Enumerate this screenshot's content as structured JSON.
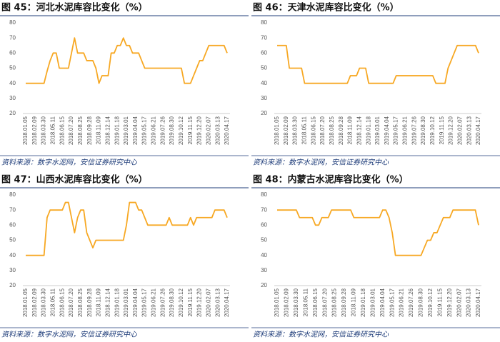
{
  "chart_data": [
    {
      "type": "line",
      "title": "图 45：河北水泥库容比变化（%）",
      "source": "资料来源：数字水泥网，安信证券研究中心",
      "color": "#f7a823",
      "categories": [
        "2018.01.05",
        null,
        null,
        "2018.02.09",
        null,
        null,
        "2018.03.30",
        null,
        null,
        "2018.05.11",
        null,
        null,
        "2018.06.15",
        null,
        null,
        "2018.07.20",
        null,
        null,
        "2018.08.25",
        null,
        null,
        "2018.09.28",
        null,
        null,
        "2018.11.09",
        null,
        null,
        "2018.12.14",
        null,
        null,
        "2019.01.18",
        null,
        null,
        "2019.03.01",
        null,
        null,
        "2019.04.04",
        null,
        null,
        "2019.05.17",
        null,
        null,
        "2019.06.21",
        null,
        null,
        "2019.07.26",
        null,
        null,
        "2019.08.30",
        null,
        null,
        "2019.10.12",
        null,
        null,
        "2019.11.15",
        null,
        null,
        "2019.12.20",
        null,
        null,
        "2020.02.07",
        null,
        null,
        "2020.03.13",
        null,
        null,
        "2020.04.17"
      ],
      "values": [
        40,
        40,
        40,
        40,
        40,
        40,
        40,
        48,
        55,
        60,
        60,
        50,
        50,
        50,
        50,
        60,
        70,
        60,
        60,
        60,
        55,
        55,
        55,
        50,
        40,
        45,
        45,
        45,
        60,
        60,
        65,
        65,
        70,
        65,
        65,
        60,
        60,
        60,
        55,
        50,
        50,
        50,
        50,
        50,
        50,
        50,
        50,
        50,
        50,
        50,
        50,
        50,
        40,
        40,
        40,
        45,
        50,
        55,
        55,
        60,
        65,
        65,
        65,
        65,
        65,
        65,
        60
      ],
      "ylim": [
        20,
        80
      ],
      "yticks": [
        20,
        30,
        40,
        50,
        60,
        70,
        80
      ]
    },
    {
      "type": "line",
      "title": "图 46：天津水泥库容比变化（%）",
      "source": "资料来源：数字水泥网，安信证券研究中心",
      "color": "#f7a823",
      "categories": [
        "2018.01.05",
        null,
        null,
        "2018.02.09",
        null,
        null,
        "2018.03.30",
        null,
        null,
        "2018.05.11",
        null,
        null,
        "2018.06.15",
        null,
        null,
        "2018.07.20",
        null,
        null,
        "2018.08.25",
        null,
        null,
        "2018.09.28",
        null,
        null,
        "2018.11.09",
        null,
        null,
        "2018.12.14",
        null,
        null,
        "2019.01.18",
        null,
        null,
        "2019.03.01",
        null,
        null,
        "2019.04.04",
        null,
        null,
        "2019.05.17",
        null,
        null,
        "2019.06.21",
        null,
        null,
        "2019.07.26",
        null,
        null,
        "2019.08.30",
        null,
        null,
        "2019.10.12",
        null,
        null,
        "2019.11.15",
        null,
        null,
        "2019.12.20",
        null,
        null,
        "2020.02.07",
        null,
        null,
        "2020.03.13",
        null,
        null,
        "2020.04.17"
      ],
      "values": [
        65,
        65,
        65,
        65,
        50,
        50,
        50,
        50,
        50,
        40,
        40,
        40,
        40,
        40,
        40,
        40,
        40,
        40,
        40,
        40,
        40,
        40,
        40,
        40,
        45,
        45,
        45,
        50,
        50,
        50,
        40,
        40,
        40,
        40,
        40,
        40,
        40,
        40,
        40,
        45,
        45,
        45,
        45,
        45,
        45,
        45,
        45,
        45,
        45,
        45,
        45,
        45,
        40,
        40,
        40,
        40,
        50,
        55,
        60,
        65,
        65,
        65,
        65,
        65,
        65,
        65,
        60
      ],
      "ylim": [
        20,
        80
      ],
      "yticks": [
        20,
        30,
        40,
        50,
        60,
        70,
        80
      ]
    },
    {
      "type": "line",
      "title": "图 47：山西水泥库容比变化（%）",
      "source": "资料来源：数字水泥网，安信证券研究中心",
      "color": "#f7a823",
      "categories": [
        "2018.01.05",
        null,
        null,
        "2018.02.09",
        null,
        null,
        "2018.03.30",
        null,
        null,
        "2018.05.11",
        null,
        null,
        "2018.06.15",
        null,
        null,
        "2018.07.20",
        null,
        null,
        "2018.08.25",
        null,
        null,
        "2018.09.28",
        null,
        null,
        "2018.11.09",
        null,
        null,
        "2018.12.14",
        null,
        null,
        "2019.01.18",
        null,
        null,
        "2019.03.01",
        null,
        null,
        "2019.04.04",
        null,
        null,
        "2019.05.17",
        null,
        null,
        "2019.06.21",
        null,
        null,
        "2019.07.26",
        null,
        null,
        "2019.08.30",
        null,
        null,
        "2019.10.12",
        null,
        null,
        "2019.11.15",
        null,
        null,
        "2019.12.20",
        null,
        null,
        "2020.02.07",
        null,
        null,
        "2020.03.13",
        null,
        null,
        "2020.04.17"
      ],
      "values": [
        40,
        40,
        40,
        40,
        40,
        40,
        40,
        65,
        70,
        70,
        70,
        70,
        70,
        75,
        75,
        65,
        55,
        65,
        70,
        70,
        55,
        50,
        45,
        50,
        50,
        50,
        50,
        50,
        50,
        50,
        50,
        50,
        50,
        60,
        75,
        75,
        75,
        70,
        70,
        65,
        60,
        60,
        60,
        60,
        60,
        60,
        60,
        65,
        60,
        60,
        60,
        60,
        60,
        60,
        65,
        60,
        65,
        65,
        65,
        65,
        65,
        65,
        70,
        70,
        70,
        70,
        65
      ],
      "ylim": [
        20,
        80
      ],
      "yticks": [
        20,
        30,
        40,
        50,
        60,
        70,
        80
      ]
    },
    {
      "type": "line",
      "title": "图 48：内蒙古水泥库容比变化（%）",
      "source": "资料来源：数字水泥网，安信证券研究中心",
      "color": "#f7a823",
      "categories": [
        "2018.01.05",
        null,
        null,
        "2018.02.09",
        null,
        null,
        "2018.03.30",
        null,
        null,
        "2018.05.11",
        null,
        null,
        "2018.06.15",
        null,
        null,
        "2018.07.20",
        null,
        null,
        "2018.08.25",
        null,
        null,
        "2018.09.28",
        null,
        null,
        "2018.11.09",
        null,
        null,
        "2019.01.18",
        null,
        null,
        "2019.03.01",
        null,
        null,
        "2019.04.04",
        null,
        null,
        "2019.05.17",
        null,
        null,
        "2019.06.21",
        null,
        null,
        "2019.07.26",
        null,
        null,
        "2019.08.30",
        null,
        null,
        "2019.10.12",
        null,
        null,
        "2019.11.15",
        null,
        null,
        "2019.12.20",
        null,
        null,
        "2020.02.07",
        null,
        null,
        "2020.03.13",
        null,
        null,
        "2020.04.17"
      ],
      "values": [
        70,
        70,
        70,
        70,
        70,
        70,
        70,
        65,
        65,
        65,
        65,
        65,
        60,
        60,
        65,
        65,
        65,
        70,
        70,
        70,
        70,
        70,
        70,
        70,
        65,
        65,
        65,
        65,
        65,
        65,
        65,
        65,
        65,
        70,
        70,
        65,
        55,
        40,
        40,
        40,
        40,
        40,
        40,
        40,
        40,
        40,
        45,
        50,
        50,
        55,
        55,
        60,
        65,
        65,
        65,
        70,
        70,
        70,
        70,
        70,
        70,
        70,
        70,
        60
      ],
      "ylim": [
        20,
        80
      ],
      "yticks": [
        20,
        30,
        40,
        50,
        60,
        70,
        80
      ]
    }
  ]
}
